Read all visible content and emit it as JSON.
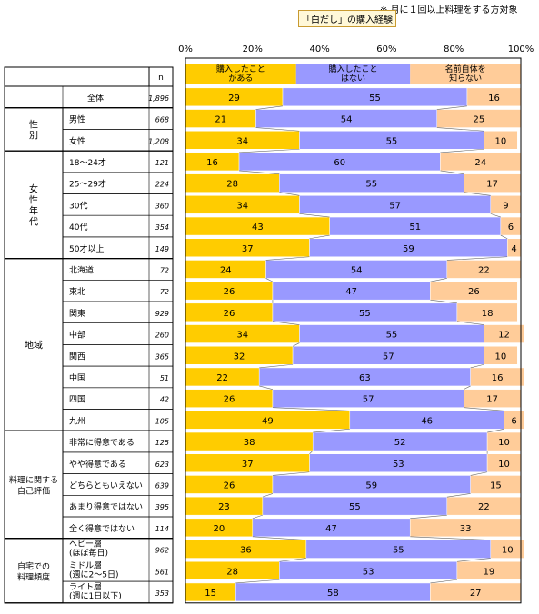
{
  "note": "※ 月に１回以上料理をする方対象",
  "legend_title": "「白だし」の購入経験",
  "n_header": "n",
  "chart_data": {
    "type": "bar",
    "stacked": true,
    "orientation": "horizontal",
    "x_ticks": [
      "0%",
      "20%",
      "40%",
      "60%",
      "80%",
      "100%"
    ],
    "xlim": [
      0,
      100
    ],
    "colors": [
      "#ffcc00",
      "#9999ff",
      "#ffcc99"
    ],
    "series": [
      {
        "name": "購入したことがある",
        "label_lines": [
          "購入したこと",
          "がある"
        ]
      },
      {
        "name": "購入したことはない",
        "label_lines": [
          "購入したこと",
          "はない"
        ]
      },
      {
        "name": "名前自体を知らない",
        "label_lines": [
          "名前自体を",
          "知らない"
        ]
      }
    ],
    "groups": [
      {
        "label": "",
        "rows": [
          {
            "label": "全体",
            "n": "1,896",
            "values": [
              29,
              55,
              16
            ]
          }
        ]
      },
      {
        "label": "性別",
        "vertical": true,
        "rows": [
          {
            "label": "男性",
            "n": "668",
            "values": [
              21,
              54,
              25
            ]
          },
          {
            "label": "女性",
            "n": "1,208",
            "values": [
              34,
              55,
              10
            ]
          }
        ]
      },
      {
        "label": "女性年代",
        "vertical": true,
        "rows": [
          {
            "label": "18～24才",
            "n": "121",
            "values": [
              16,
              60,
              24
            ]
          },
          {
            "label": "25～29才",
            "n": "224",
            "values": [
              28,
              55,
              17
            ]
          },
          {
            "label": "30代",
            "n": "360",
            "values": [
              34,
              57,
              9
            ]
          },
          {
            "label": "40代",
            "n": "354",
            "values": [
              43,
              51,
              6
            ]
          },
          {
            "label": "50才以上",
            "n": "149",
            "values": [
              37,
              59,
              4
            ]
          }
        ]
      },
      {
        "label": "地域",
        "rows": [
          {
            "label": "北海道",
            "n": "72",
            "values": [
              24,
              54,
              22
            ]
          },
          {
            "label": "東北",
            "n": "72",
            "values": [
              26,
              47,
              26
            ]
          },
          {
            "label": "関東",
            "n": "929",
            "values": [
              26,
              55,
              18
            ]
          },
          {
            "label": "中部",
            "n": "260",
            "values": [
              34,
              55,
              12
            ]
          },
          {
            "label": "関西",
            "n": "365",
            "values": [
              32,
              57,
              10
            ]
          },
          {
            "label": "中国",
            "n": "51",
            "values": [
              22,
              63,
              16
            ]
          },
          {
            "label": "四国",
            "n": "42",
            "values": [
              26,
              57,
              17
            ]
          },
          {
            "label": "九州",
            "n": "105",
            "values": [
              49,
              46,
              6
            ]
          }
        ]
      },
      {
        "label": "料理に関する自己評価",
        "label_lines": [
          "料理に関する",
          "自己評価"
        ],
        "rows": [
          {
            "label": "非常に得意である",
            "n": "125",
            "values": [
              38,
              52,
              10
            ]
          },
          {
            "label": "やや得意である",
            "n": "623",
            "values": [
              37,
              53,
              10
            ]
          },
          {
            "label": "どちらともいえない",
            "n": "639",
            "values": [
              26,
              59,
              15
            ]
          },
          {
            "label": "あまり得意ではない",
            "n": "395",
            "values": [
              23,
              55,
              22
            ]
          },
          {
            "label": "全く得意ではない",
            "n": "114",
            "values": [
              20,
              47,
              33
            ]
          }
        ]
      },
      {
        "label": "自宅での料理頻度",
        "label_lines": [
          "自宅での",
          "料理頻度"
        ],
        "rows": [
          {
            "label": "ヘビー層（ほぼ毎日）",
            "label_lines": [
              "ヘビー層",
              "(ほぼ毎日)"
            ],
            "n": "962",
            "values": [
              36,
              55,
              10
            ]
          },
          {
            "label": "ミドル層（週に2～5日）",
            "label_lines": [
              "ミドル層",
              "(週に2～5日)"
            ],
            "n": "561",
            "values": [
              28,
              53,
              19
            ]
          },
          {
            "label": "ライト層（週に1日以下）",
            "label_lines": [
              "ライト層",
              "(週に1日以下)"
            ],
            "n": "353",
            "values": [
              15,
              58,
              27
            ]
          }
        ]
      }
    ]
  }
}
